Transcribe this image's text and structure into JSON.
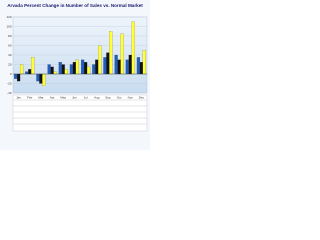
{
  "chart_data": {
    "type": "bar",
    "title": "Arvada Percent Change in Number of Sales vs. Normal Market",
    "categories": [
      "Jan",
      "Feb",
      "Mar",
      "Apr",
      "May",
      "Jun",
      "Jul",
      "Aug",
      "Sep",
      "Oct",
      "Nov",
      "Dec"
    ],
    "series": [
      {
        "color": "#1f5fbf",
        "values": [
          -10,
          5,
          -15,
          20,
          25,
          20,
          30,
          20,
          35,
          40,
          30,
          35
        ]
      },
      {
        "color": "#111111",
        "values": [
          -15,
          10,
          -20,
          15,
          20,
          25,
          25,
          30,
          45,
          30,
          40,
          25
        ]
      },
      {
        "color": "#ffff33",
        "values": [
          20,
          35,
          -25,
          5,
          10,
          30,
          15,
          60,
          90,
          85,
          110,
          50
        ]
      }
    ],
    "ylim": [
      -40,
      120
    ],
    "yticks": [
      -40,
      -20,
      0,
      20,
      40,
      60,
      80,
      100,
      120
    ],
    "grid": true
  }
}
